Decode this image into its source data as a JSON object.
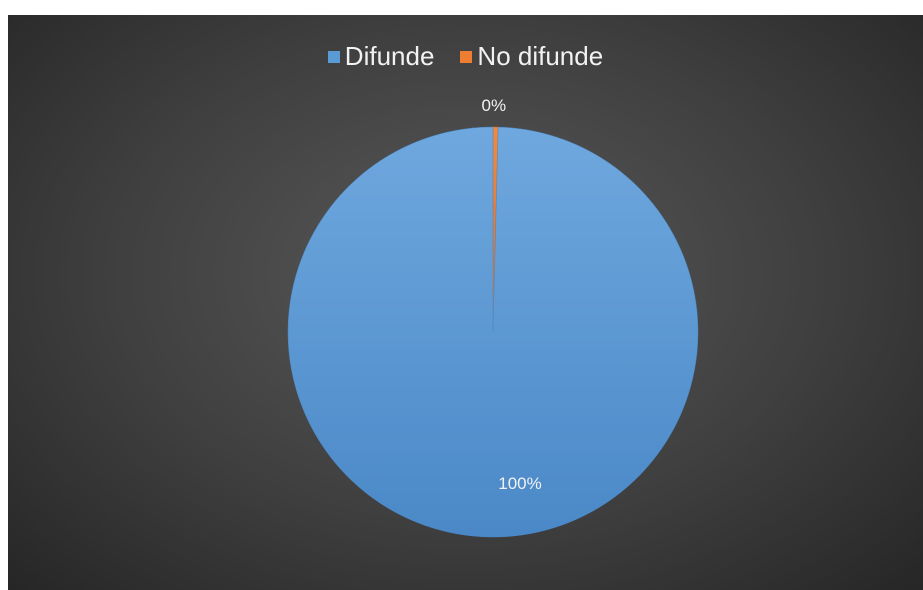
{
  "chart_data": {
    "type": "pie",
    "categories": [
      "Difunde",
      "No difunde"
    ],
    "values": [
      99.6,
      0.4
    ],
    "data_labels": [
      "100%",
      "0%"
    ],
    "colors": [
      "#5b9bd5",
      "#ed7d31"
    ],
    "legend_position": "top",
    "start_angle_deg": 0,
    "direction": "counterclockwise"
  }
}
